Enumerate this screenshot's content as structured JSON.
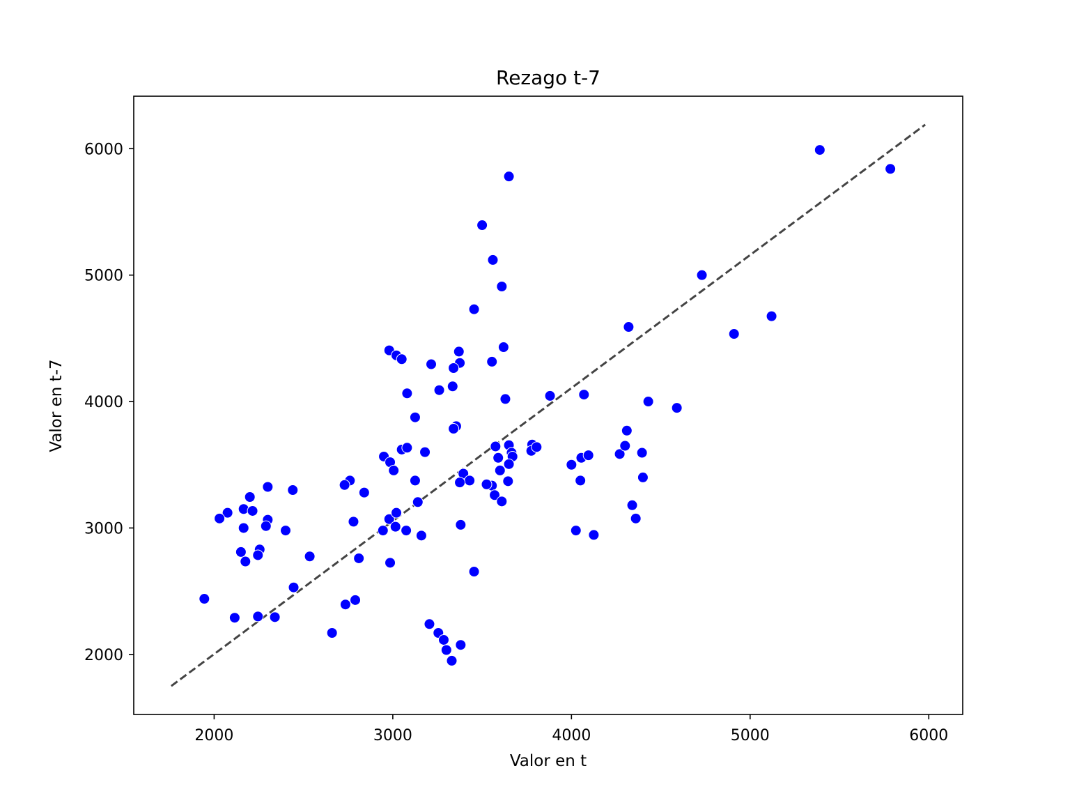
{
  "chart_data": {
    "type": "scatter",
    "title": "Rezago t-7",
    "xlabel": "Valor en t",
    "ylabel": "Valor en t-7",
    "xlim": [
      1550,
      6190
    ],
    "ylim": [
      1525,
      6415
    ],
    "xticks": [
      2000,
      3000,
      4000,
      5000,
      6000
    ],
    "yticks": [
      2000,
      3000,
      4000,
      5000,
      6000
    ],
    "grid": false,
    "point_color": "#0000ff",
    "reference_line": {
      "style": "dashed",
      "color": "#444444",
      "x": [
        1760,
        5980
      ],
      "y": [
        1750,
        6190
      ]
    },
    "points": [
      [
        5390,
        5990
      ],
      [
        5785,
        5840
      ],
      [
        3650,
        5780
      ],
      [
        3500,
        5395
      ],
      [
        3560,
        5120
      ],
      [
        3610,
        4910
      ],
      [
        4730,
        5000
      ],
      [
        5120,
        4675
      ],
      [
        4910,
        4535
      ],
      [
        4320,
        4590
      ],
      [
        3455,
        4730
      ],
      [
        2980,
        4405
      ],
      [
        3370,
        4395
      ],
      [
        3620,
        4430
      ],
      [
        3020,
        4365
      ],
      [
        3050,
        4335
      ],
      [
        3375,
        4305
      ],
      [
        3555,
        4315
      ],
      [
        3215,
        4295
      ],
      [
        3340,
        4265
      ],
      [
        3335,
        4120
      ],
      [
        3260,
        4090
      ],
      [
        3080,
        4065
      ],
      [
        3630,
        4020
      ],
      [
        3880,
        4045
      ],
      [
        4070,
        4055
      ],
      [
        4430,
        4000
      ],
      [
        4590,
        3950
      ],
      [
        3125,
        3875
      ],
      [
        3355,
        3805
      ],
      [
        3340,
        3785
      ],
      [
        4310,
        3770
      ],
      [
        2950,
        3565
      ],
      [
        2985,
        3520
      ],
      [
        3005,
        3455
      ],
      [
        3050,
        3620
      ],
      [
        3080,
        3635
      ],
      [
        3180,
        3600
      ],
      [
        3575,
        3645
      ],
      [
        3650,
        3655
      ],
      [
        3665,
        3595
      ],
      [
        3670,
        3565
      ],
      [
        3590,
        3555
      ],
      [
        3650,
        3505
      ],
      [
        3600,
        3455
      ],
      [
        3780,
        3660
      ],
      [
        3775,
        3610
      ],
      [
        3805,
        3640
      ],
      [
        4000,
        3500
      ],
      [
        4055,
        3555
      ],
      [
        4095,
        3575
      ],
      [
        4270,
        3585
      ],
      [
        4300,
        3650
      ],
      [
        4395,
        3595
      ],
      [
        4400,
        3400
      ],
      [
        4050,
        3375
      ],
      [
        3645,
        3370
      ],
      [
        3555,
        3335
      ],
      [
        3525,
        3345
      ],
      [
        3395,
        3430
      ],
      [
        3430,
        3375
      ],
      [
        3375,
        3360
      ],
      [
        3125,
        3375
      ],
      [
        3570,
        3260
      ],
      [
        3610,
        3210
      ],
      [
        3140,
        3205
      ],
      [
        4340,
        3180
      ],
      [
        4360,
        3075
      ],
      [
        2760,
        3375
      ],
      [
        2730,
        3340
      ],
      [
        2840,
        3280
      ],
      [
        2300,
        3325
      ],
      [
        2440,
        3300
      ],
      [
        2200,
        3245
      ],
      [
        2165,
        3150
      ],
      [
        2215,
        3135
      ],
      [
        2075,
        3120
      ],
      [
        2030,
        3075
      ],
      [
        2300,
        3065
      ],
      [
        2290,
        3015
      ],
      [
        2165,
        3000
      ],
      [
        2400,
        2980
      ],
      [
        2780,
        3050
      ],
      [
        2980,
        3070
      ],
      [
        3020,
        3120
      ],
      [
        2945,
        2980
      ],
      [
        3015,
        3010
      ],
      [
        3075,
        2980
      ],
      [
        3160,
        2940
      ],
      [
        3380,
        3025
      ],
      [
        4025,
        2980
      ],
      [
        4125,
        2945
      ],
      [
        2150,
        2810
      ],
      [
        2255,
        2830
      ],
      [
        2245,
        2785
      ],
      [
        2175,
        2735
      ],
      [
        2535,
        2775
      ],
      [
        2810,
        2760
      ],
      [
        2985,
        2725
      ],
      [
        3455,
        2655
      ],
      [
        2445,
        2530
      ],
      [
        1945,
        2440
      ],
      [
        2115,
        2290
      ],
      [
        2245,
        2300
      ],
      [
        2340,
        2295
      ],
      [
        2735,
        2395
      ],
      [
        2790,
        2430
      ],
      [
        2660,
        2170
      ],
      [
        3205,
        2240
      ],
      [
        3255,
        2170
      ],
      [
        3285,
        2115
      ],
      [
        3300,
        2035
      ],
      [
        3330,
        1950
      ],
      [
        3380,
        2075
      ]
    ]
  }
}
